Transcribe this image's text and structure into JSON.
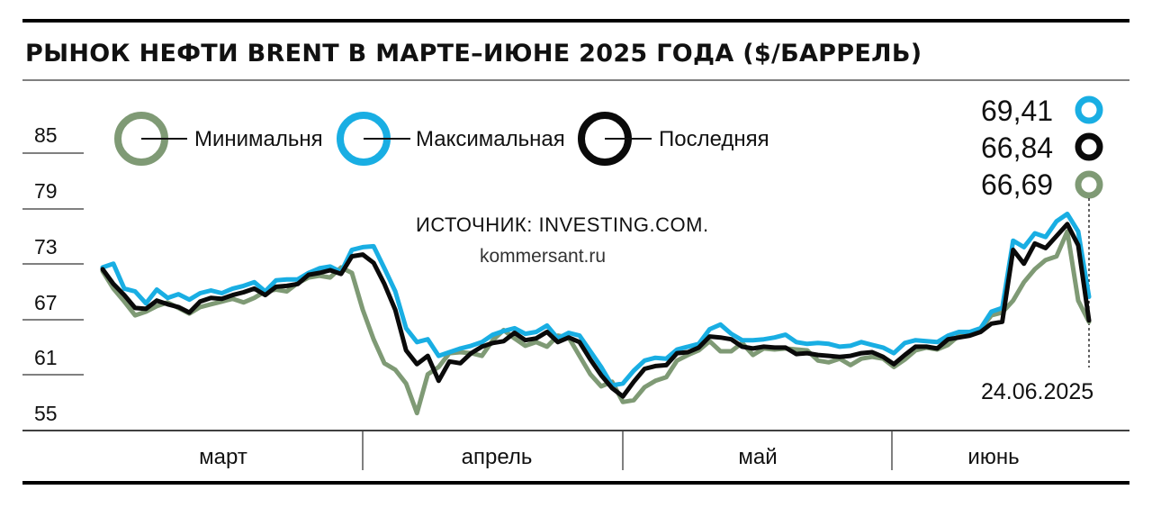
{
  "chart_data": {
    "type": "line",
    "title": "РЫНОК НЕФТИ BRENT В МАРТЕ–ИЮНЕ 2025 ГОДА ($/БАРРЕЛЬ)",
    "source": "ИСТОЧНИК: INVESTING.COM.",
    "site": "kommersant.ru",
    "y_ticks": [
      "85",
      "79",
      "73",
      "67",
      "61",
      "55"
    ],
    "ylim": [
      55,
      88
    ],
    "months": [
      "март",
      "апрель",
      "май",
      "июнь"
    ],
    "end_date": "24.06.2025",
    "grid": false,
    "legend": "top-left",
    "series": [
      {
        "name": "Минимальня",
        "color": "#7f9a75",
        "last_label": "66,69",
        "values": [
          72.2,
          70.3,
          68.9,
          67.4,
          67.8,
          68.4,
          68.8,
          68.2,
          67.6,
          68.3,
          68.6,
          68.9,
          69.2,
          68.8,
          69.3,
          70.0,
          70.2,
          70.0,
          70.9,
          71.5,
          71.7,
          71.5,
          72.6,
          72.0,
          68.0,
          64.8,
          62.2,
          61.5,
          60.0,
          56.8,
          61.0,
          61.8,
          63.3,
          63.4,
          63.3,
          63.0,
          64.7,
          65.8,
          64.9,
          64.1,
          64.5,
          64.0,
          65.2,
          65.0,
          63.0,
          61.0,
          59.7,
          60.2,
          58.0,
          58.2,
          59.6,
          60.3,
          60.7,
          62.5,
          63.1,
          63.6,
          64.6,
          63.5,
          63.5,
          64.4,
          63.1,
          63.8,
          63.7,
          63.8,
          63.7,
          63.6,
          62.5,
          62.3,
          62.7,
          62.0,
          62.7,
          62.9,
          62.7,
          61.8,
          62.6,
          63.6,
          63.9,
          63.7,
          64.2,
          65.2,
          65.5,
          65.9,
          67.4,
          67.7,
          69.0,
          71.0,
          72.4,
          73.4,
          73.8,
          76.5,
          69.0,
          66.69
        ]
      },
      {
        "name": "Максимальная",
        "color": "#19aee3",
        "last_label": "69,41",
        "values": [
          72.6,
          73.0,
          70.3,
          70.0,
          68.7,
          70.2,
          69.3,
          69.7,
          69.1,
          69.8,
          70.1,
          69.8,
          70.3,
          70.6,
          71.0,
          70.0,
          71.2,
          71.3,
          71.3,
          72.0,
          72.5,
          72.7,
          72.1,
          74.5,
          74.8,
          74.9,
          72.5,
          70.0,
          66.0,
          64.5,
          64.8,
          63.0,
          63.4,
          63.8,
          64.1,
          64.5,
          65.3,
          65.7,
          66.0,
          65.4,
          65.6,
          66.3,
          64.9,
          65.5,
          65.2,
          63.5,
          61.8,
          59.8,
          60.0,
          61.4,
          62.5,
          62.8,
          62.7,
          63.7,
          64.0,
          64.3,
          65.9,
          66.4,
          65.4,
          64.7,
          64.7,
          64.8,
          65.0,
          65.3,
          64.5,
          64.3,
          64.4,
          64.3,
          64.0,
          64.1,
          64.5,
          64.2,
          63.9,
          63.3,
          64.4,
          64.7,
          64.6,
          64.5,
          65.2,
          65.6,
          65.6,
          66.0,
          67.8,
          68.2,
          75.5,
          74.8,
          76.3,
          75.9,
          77.6,
          78.4,
          76.5,
          69.41
        ]
      },
      {
        "name": "Последняя",
        "color": "#0a0a0a",
        "last_label": "66,84",
        "values": [
          72.4,
          70.8,
          69.6,
          68.2,
          68.1,
          69.0,
          68.6,
          68.3,
          67.7,
          68.9,
          69.3,
          69.2,
          69.6,
          69.9,
          70.3,
          69.6,
          70.5,
          70.6,
          70.8,
          71.8,
          72.0,
          72.3,
          71.9,
          73.8,
          74.0,
          73.1,
          70.8,
          68.0,
          63.6,
          62.1,
          63.0,
          60.3,
          62.4,
          62.2,
          63.3,
          64.0,
          64.4,
          64.6,
          65.5,
          64.7,
          64.9,
          65.6,
          64.5,
          65.0,
          64.5,
          62.6,
          60.9,
          59.5,
          58.6,
          60.2,
          61.6,
          61.9,
          62.0,
          63.3,
          63.4,
          63.9,
          65.1,
          65.0,
          64.8,
          64.0,
          63.8,
          64.0,
          63.9,
          63.9,
          63.2,
          63.3,
          63.1,
          63.0,
          62.9,
          63.0,
          63.3,
          63.4,
          62.9,
          62.1,
          63.1,
          64.0,
          64.0,
          63.8,
          64.8,
          65.0,
          65.2,
          65.6,
          66.5,
          66.7,
          74.5,
          73.0,
          75.2,
          74.7,
          76.0,
          77.3,
          75.0,
          66.84
        ]
      }
    ]
  }
}
